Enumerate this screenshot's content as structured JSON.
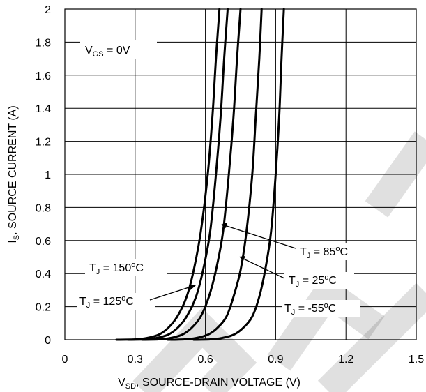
{
  "chart_data": {
    "type": "line",
    "xlabel_parts": [
      "V",
      "SD",
      ", SOURCE-DRAIN VOLTAGE (V)"
    ],
    "ylabel_parts": [
      "I",
      "S",
      ", SOURCE CURRENT (A)"
    ],
    "xlim": [
      0,
      1.5
    ],
    "ylim": [
      0,
      2
    ],
    "x_ticks": [
      "0",
      "0.3",
      "0.6",
      "0.9",
      "1.2",
      "1.5"
    ],
    "y_ticks": [
      "0",
      "0.2",
      "0.4",
      "0.6",
      "0.8",
      "1",
      "1.2",
      "1.4",
      "1.6",
      "1.8",
      "2"
    ],
    "grid": true,
    "condition": {
      "parts": [
        "V",
        "GS",
        " = 0V"
      ]
    },
    "series": [
      {
        "name_parts": [
          "T",
          "J",
          " = 150",
          "o",
          "C"
        ],
        "x": [
          0.22,
          0.3,
          0.35,
          0.4,
          0.44,
          0.48,
          0.52,
          0.55,
          0.58,
          0.61,
          0.63,
          0.645,
          0.66
        ],
        "y": [
          0,
          0.002,
          0.01,
          0.03,
          0.07,
          0.14,
          0.26,
          0.42,
          0.65,
          1.0,
          1.35,
          1.7,
          2.0
        ]
      },
      {
        "name_parts": [
          "T",
          "J",
          " = 125",
          "o",
          "C"
        ],
        "x": [
          0.27,
          0.34,
          0.39,
          0.44,
          0.48,
          0.52,
          0.56,
          0.59,
          0.62,
          0.645,
          0.665,
          0.68,
          0.695
        ],
        "y": [
          0,
          0.002,
          0.01,
          0.03,
          0.07,
          0.14,
          0.26,
          0.42,
          0.65,
          1.0,
          1.35,
          1.7,
          2.0
        ]
      },
      {
        "name_parts": [
          "T",
          "J",
          " = 85",
          "o",
          "C"
        ],
        "x": [
          0.33,
          0.4,
          0.45,
          0.5,
          0.54,
          0.58,
          0.615,
          0.645,
          0.675,
          0.7,
          0.72,
          0.735,
          0.75
        ],
        "y": [
          0,
          0.002,
          0.01,
          0.03,
          0.07,
          0.14,
          0.26,
          0.42,
          0.65,
          1.0,
          1.35,
          1.7,
          2.0
        ]
      },
      {
        "name_parts": [
          "T",
          "J",
          " = 25",
          "o",
          "C"
        ],
        "x": [
          0.44,
          0.51,
          0.56,
          0.61,
          0.65,
          0.69,
          0.72,
          0.75,
          0.775,
          0.8,
          0.815,
          0.83,
          0.84
        ],
        "y": [
          0,
          0.002,
          0.01,
          0.03,
          0.07,
          0.14,
          0.26,
          0.42,
          0.65,
          1.0,
          1.35,
          1.7,
          2.0
        ]
      },
      {
        "name_parts": [
          "T",
          "J",
          " = -55",
          "o",
          "C"
        ],
        "x": [
          0.55,
          0.62,
          0.67,
          0.72,
          0.76,
          0.8,
          0.83,
          0.855,
          0.88,
          0.9,
          0.915,
          0.925,
          0.935
        ],
        "y": [
          0,
          0.002,
          0.01,
          0.03,
          0.07,
          0.14,
          0.26,
          0.42,
          0.65,
          1.0,
          1.35,
          1.7,
          2.0
        ]
      }
    ],
    "colors": {
      "line": "#000000",
      "grid": "#000000",
      "background": "#ffffff"
    }
  }
}
